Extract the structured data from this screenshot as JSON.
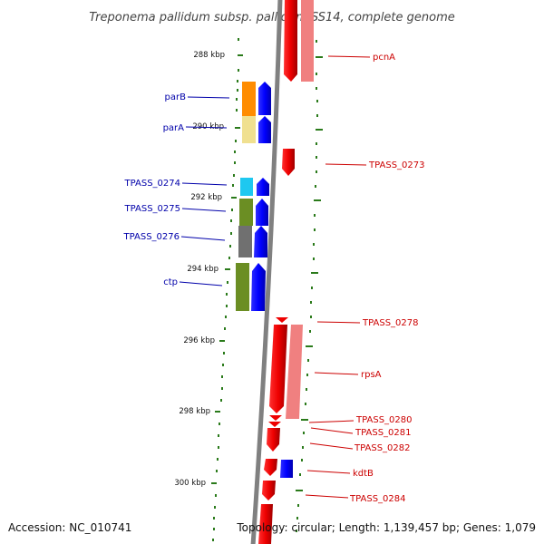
{
  "title": "Treponema pallidum subsp. pallidum SS14, complete genome",
  "accession": "Accession: NC_010741",
  "topology": "Topology: circular; Length: 1,139,457 bp; Genes: 1,079",
  "colors": {
    "backbone": "#808080",
    "tick": "#2a7a1a",
    "left_label": "#0000aa",
    "right_label": "#cc0000",
    "forward_gene": "#0000ff",
    "reverse_gene": "#ee0000",
    "reverse_gene_light": "#f08080",
    "orange": "#ff8c00",
    "pale_yellow": "#f0e090",
    "cyan": "#1ec8f0",
    "olive": "#6b8e23",
    "gray": "#707070"
  },
  "ticks": [
    "288 kbp",
    "290 kbp",
    "292 kbp",
    "294 kbp",
    "296 kbp",
    "298 kbp",
    "300 kbp"
  ],
  "left_genes": [
    "parB",
    "parA",
    "TPASS_0274",
    "TPASS_0275",
    "TPASS_0276",
    "ctp"
  ],
  "right_genes": [
    "pcnA",
    "TPASS_0273",
    "TPASS_0278",
    "rpsA",
    "TPASS_0280",
    "TPASS_0281",
    "TPASS_0282",
    "kdtB",
    "TPASS_0284"
  ]
}
